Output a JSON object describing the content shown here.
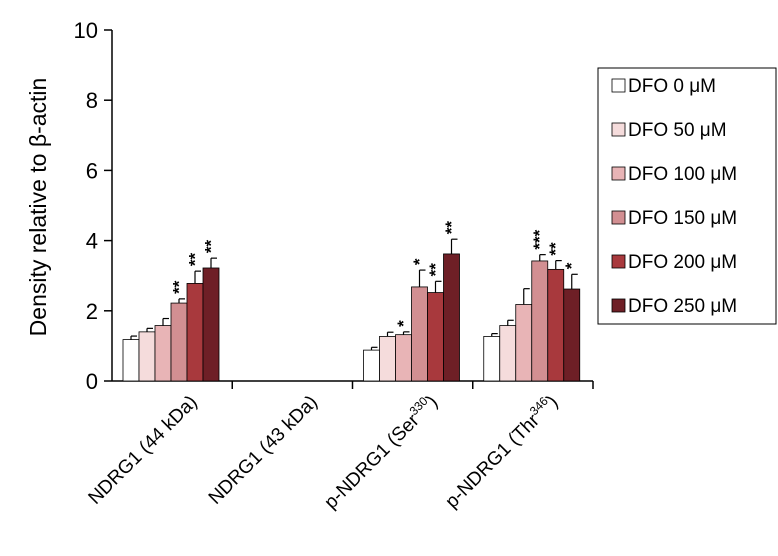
{
  "chart_data": {
    "type": "bar",
    "ylabel": "Density relative to β-actin",
    "ylim": [
      0,
      10
    ],
    "yticks": [
      "0",
      "2",
      "4",
      "6",
      "8",
      "10"
    ],
    "categories": [
      {
        "base": "NDRG1 (44 kDa)",
        "sup": "",
        "tail": ""
      },
      {
        "base": "NDRG1 (43 kDa)",
        "sup": "",
        "tail": ""
      },
      {
        "base": "p-NDRG1 (Ser",
        "sup": "330",
        "tail": ")"
      },
      {
        "base": "p-NDRG1 (Thr",
        "sup": "346",
        "tail": ")"
      }
    ],
    "series": [
      {
        "name": "DFO 0 μM",
        "color": "#ffffff",
        "values": [
          1.18,
          0,
          0.88,
          1.27
        ],
        "errors": [
          0.1,
          0,
          0.08,
          0.08
        ],
        "sig": [
          "",
          "",
          "",
          ""
        ]
      },
      {
        "name": "DFO 50 μM",
        "color": "#f5dcdc",
        "values": [
          1.4,
          0,
          1.27,
          1.58
        ],
        "errors": [
          0.1,
          0,
          0.12,
          0.15
        ],
        "sig": [
          "",
          "",
          "",
          ""
        ]
      },
      {
        "name": "DFO 100 μM",
        "color": "#e8b4b6",
        "values": [
          1.58,
          0,
          1.32,
          2.18
        ],
        "errors": [
          0.2,
          0,
          0.08,
          0.45
        ],
        "sig": [
          "",
          "",
          "*",
          ""
        ]
      },
      {
        "name": "DFO 150 μM",
        "color": "#d28f92",
        "values": [
          2.22,
          0,
          2.68,
          3.42
        ],
        "errors": [
          0.12,
          0,
          0.48,
          0.18
        ],
        "sig": [
          "**",
          "",
          "*",
          "***"
        ]
      },
      {
        "name": "DFO 200 μM",
        "color": "#a8393d",
        "values": [
          2.78,
          0,
          2.52,
          3.18
        ],
        "errors": [
          0.35,
          0,
          0.32,
          0.25
        ],
        "sig": [
          "**",
          "",
          "**",
          "**"
        ]
      },
      {
        "name": "DFO 250 μM",
        "color": "#6e1f26",
        "values": [
          3.22,
          0,
          3.62,
          2.62
        ],
        "errors": [
          0.28,
          0,
          0.42,
          0.42
        ],
        "sig": [
          "**",
          "",
          "**",
          "*"
        ]
      }
    ],
    "legend_position": "right"
  }
}
